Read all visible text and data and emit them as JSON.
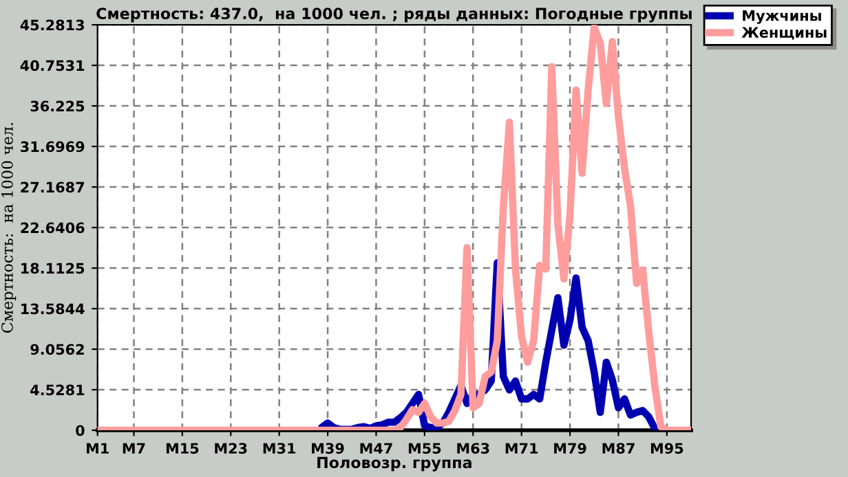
{
  "chart_data": {
    "type": "line",
    "title": "Смертность: 437.0,  на 1000 чел. ; ряды данных: Погодные группы",
    "xlabel": "Половозр. группа",
    "ylabel": "Смертность:  на 1000 чел.",
    "categories": [
      "M1",
      null,
      null,
      null,
      null,
      null,
      "M7",
      null,
      null,
      null,
      null,
      null,
      null,
      null,
      "M15",
      null,
      null,
      null,
      null,
      null,
      null,
      null,
      "M23",
      null,
      null,
      null,
      null,
      null,
      null,
      null,
      "M31",
      null,
      null,
      null,
      null,
      null,
      null,
      null,
      "M39",
      null,
      null,
      null,
      null,
      null,
      null,
      null,
      "M47",
      null,
      null,
      null,
      null,
      null,
      null,
      null,
      "M55",
      null,
      null,
      null,
      null,
      null,
      null,
      null,
      "M63",
      null,
      null,
      null,
      null,
      null,
      null,
      null,
      "M71",
      null,
      null,
      null,
      null,
      null,
      null,
      null,
      "M79",
      null,
      null,
      null,
      null,
      null,
      null,
      null,
      "M87",
      null,
      null,
      null,
      null,
      null,
      null,
      null,
      "M95",
      null,
      null,
      null,
      null
    ],
    "series": [
      {
        "name": "Мужчины",
        "color": "#0000b0",
        "values": [
          null,
          null,
          null,
          null,
          null,
          null,
          null,
          null,
          null,
          null,
          null,
          null,
          null,
          null,
          null,
          null,
          null,
          null,
          null,
          null,
          null,
          null,
          null,
          null,
          null,
          null,
          null,
          null,
          null,
          null,
          null,
          null,
          null,
          null,
          null,
          null,
          null,
          0.3,
          0.8,
          0.3,
          0.1,
          0.1,
          0.1,
          0.3,
          0.4,
          0.2,
          0.5,
          0.6,
          0.9,
          0.9,
          1.4,
          2.0,
          3.0,
          4.0,
          0.5,
          0.3,
          0.3,
          0.8,
          2.0,
          3.5,
          5.0,
          3.0,
          4.0,
          4.0,
          4.5,
          5.5,
          18.7,
          6.0,
          4.5,
          5.5,
          3.5,
          3.5,
          4.0,
          3.5,
          7.6,
          11.2,
          14.8,
          9.5,
          12.3,
          17.0,
          11.5,
          10.0,
          6.5,
          2.0,
          7.6,
          5.6,
          2.5,
          3.5,
          1.7,
          2.0,
          2.2,
          1.5,
          0.2,
          null,
          null,
          null,
          null,
          null,
          null
        ]
      },
      {
        "name": "Женщины",
        "color": "#ff9c9c",
        "values": [
          0,
          0,
          0,
          0,
          0,
          0,
          0,
          0,
          0,
          0,
          0,
          0,
          0,
          0,
          0,
          0,
          0,
          0,
          0,
          0,
          0,
          0,
          0,
          0,
          0,
          0,
          0,
          0,
          0,
          0,
          0,
          0,
          0,
          0,
          0,
          0,
          0,
          0,
          0,
          0,
          0,
          0,
          0,
          0,
          0,
          0,
          0,
          0,
          0,
          0,
          0.3,
          1.2,
          2.3,
          2.0,
          3.0,
          1.5,
          0.8,
          0.8,
          1.0,
          2.2,
          4.0,
          20.4,
          2.5,
          3.0,
          6.0,
          6.5,
          10.0,
          25.0,
          34.4,
          18.0,
          10.5,
          7.6,
          10.0,
          18.4,
          18.0,
          40.6,
          23.0,
          16.9,
          24.0,
          38.0,
          28.7,
          38.0,
          45.0,
          43.2,
          36.5,
          43.4,
          35.0,
          29.3,
          25.0,
          16.4,
          17.9,
          11.0,
          5.0,
          0.4,
          0,
          0,
          0,
          0,
          0
        ]
      }
    ],
    "ylim": [
      0,
      45.2813
    ],
    "yticks": [
      0,
      4.5281,
      9.0562,
      13.5844,
      18.1125,
      22.6406,
      27.1687,
      31.6969,
      36.225,
      40.7531,
      45.2813
    ],
    "grid": true,
    "legend": "top right",
    "line_style": "solid"
  }
}
